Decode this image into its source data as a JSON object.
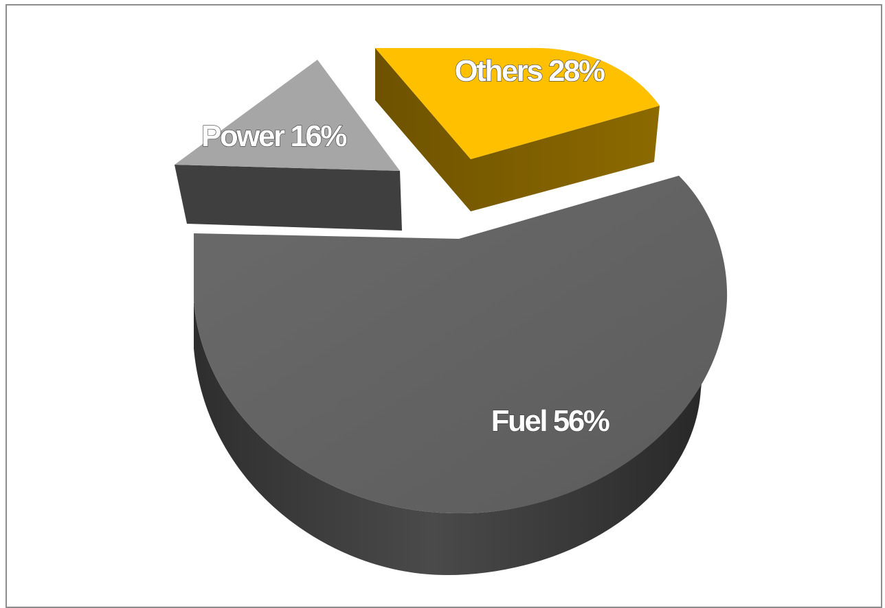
{
  "chart_data": {
    "type": "pie",
    "style": "3d-exploded",
    "slices": [
      {
        "name": "Fuel",
        "value": 56,
        "label": "Fuel 56%",
        "color": "#636363"
      },
      {
        "name": "Power",
        "value": 16,
        "label": "Power 16%",
        "color": "#a6a6a6"
      },
      {
        "name": "Others",
        "value": 28,
        "label": "Others 28%",
        "color": "#ffc000"
      }
    ],
    "legend": "none"
  }
}
